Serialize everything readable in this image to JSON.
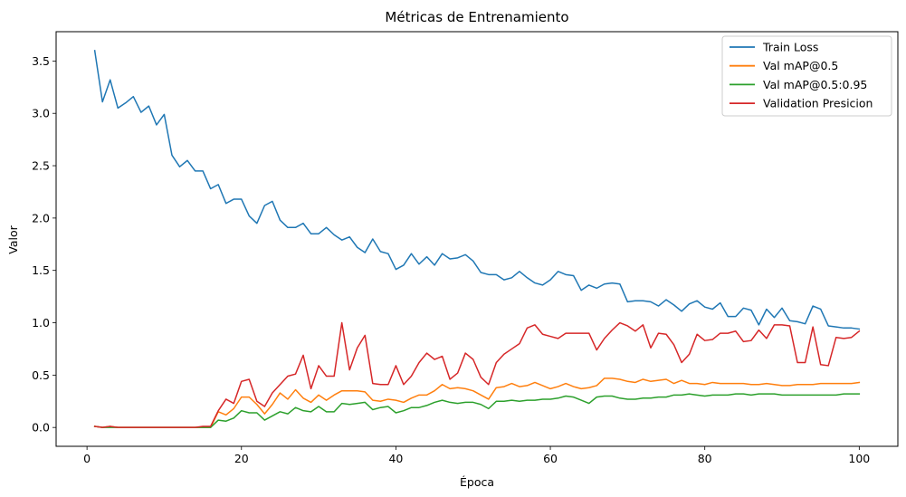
{
  "chart_data": {
    "type": "line",
    "title": "Métricas de Entrenamiento",
    "xlabel": "Época",
    "ylabel": "Valor",
    "xlim": [
      -4,
      105
    ],
    "ylim": [
      -0.18,
      3.78
    ],
    "xticks": [
      0,
      20,
      40,
      60,
      80,
      100
    ],
    "xtick_labels": [
      "0",
      "20",
      "40",
      "60",
      "80",
      "100"
    ],
    "yticks": [
      0.0,
      0.5,
      1.0,
      1.5,
      2.0,
      2.5,
      3.0,
      3.5
    ],
    "ytick_labels": [
      "0.0",
      "0.5",
      "1.0",
      "1.5",
      "2.0",
      "2.5",
      "3.0",
      "3.5"
    ],
    "grid": false,
    "legend_position": "top-right",
    "x": [
      1,
      2,
      3,
      4,
      5,
      6,
      7,
      8,
      9,
      10,
      11,
      12,
      13,
      14,
      15,
      16,
      17,
      18,
      19,
      20,
      21,
      22,
      23,
      24,
      25,
      26,
      27,
      28,
      29,
      30,
      31,
      32,
      33,
      34,
      35,
      36,
      37,
      38,
      39,
      40,
      41,
      42,
      43,
      44,
      45,
      46,
      47,
      48,
      49,
      50,
      51,
      52,
      53,
      54,
      55,
      56,
      57,
      58,
      59,
      60,
      61,
      62,
      63,
      64,
      65,
      66,
      67,
      68,
      69,
      70,
      71,
      72,
      73,
      74,
      75,
      76,
      77,
      78,
      79,
      80,
      81,
      82,
      83,
      84,
      85,
      86,
      87,
      88,
      89,
      90,
      91,
      92,
      93,
      94,
      95,
      96,
      97,
      98,
      99,
      100
    ],
    "series": [
      {
        "name": "Train Loss",
        "color": "#1f77b4",
        "values": [
          3.6,
          3.11,
          3.32,
          3.05,
          3.1,
          3.16,
          3.01,
          3.07,
          2.89,
          2.99,
          2.6,
          2.49,
          2.55,
          2.45,
          2.45,
          2.28,
          2.32,
          2.14,
          2.18,
          2.18,
          2.02,
          1.95,
          2.12,
          2.16,
          1.98,
          1.91,
          1.91,
          1.95,
          1.85,
          1.85,
          1.91,
          1.84,
          1.79,
          1.82,
          1.72,
          1.67,
          1.8,
          1.68,
          1.66,
          1.51,
          1.55,
          1.66,
          1.56,
          1.63,
          1.55,
          1.66,
          1.61,
          1.62,
          1.65,
          1.59,
          1.48,
          1.46,
          1.46,
          1.41,
          1.43,
          1.49,
          1.43,
          1.38,
          1.36,
          1.41,
          1.49,
          1.46,
          1.45,
          1.31,
          1.36,
          1.33,
          1.37,
          1.38,
          1.37,
          1.2,
          1.21,
          1.21,
          1.2,
          1.16,
          1.22,
          1.17,
          1.11,
          1.18,
          1.21,
          1.15,
          1.13,
          1.19,
          1.06,
          1.06,
          1.14,
          1.12,
          0.98,
          1.13,
          1.05,
          1.14,
          1.02,
          1.01,
          0.99,
          1.16,
          1.13,
          0.97,
          0.96,
          0.95,
          0.95,
          0.94
        ]
      },
      {
        "name": "Val mAP@0.5",
        "color": "#ff7f0e",
        "values": [
          0.01,
          0.0,
          0.01,
          0.0,
          0.0,
          0.0,
          0.0,
          0.0,
          0.0,
          0.0,
          0.0,
          0.0,
          0.0,
          0.0,
          0.0,
          0.0,
          0.15,
          0.12,
          0.18,
          0.29,
          0.29,
          0.22,
          0.13,
          0.22,
          0.33,
          0.27,
          0.36,
          0.28,
          0.24,
          0.31,
          0.26,
          0.31,
          0.35,
          0.35,
          0.35,
          0.34,
          0.26,
          0.25,
          0.27,
          0.26,
          0.24,
          0.28,
          0.31,
          0.31,
          0.35,
          0.41,
          0.37,
          0.38,
          0.37,
          0.35,
          0.31,
          0.27,
          0.38,
          0.39,
          0.42,
          0.39,
          0.4,
          0.43,
          0.4,
          0.37,
          0.39,
          0.42,
          0.39,
          0.37,
          0.38,
          0.4,
          0.47,
          0.47,
          0.46,
          0.44,
          0.43,
          0.46,
          0.44,
          0.45,
          0.46,
          0.42,
          0.45,
          0.42,
          0.42,
          0.41,
          0.43,
          0.42,
          0.42,
          0.42,
          0.42,
          0.41,
          0.41,
          0.42,
          0.41,
          0.4,
          0.4,
          0.41,
          0.41,
          0.41,
          0.42,
          0.42,
          0.42,
          0.42,
          0.42,
          0.43
        ]
      },
      {
        "name": "Val mAP@0.5:0.95",
        "color": "#2ca02c",
        "values": [
          0.01,
          0.0,
          0.0,
          0.0,
          0.0,
          0.0,
          0.0,
          0.0,
          0.0,
          0.0,
          0.0,
          0.0,
          0.0,
          0.0,
          0.0,
          0.0,
          0.07,
          0.06,
          0.09,
          0.16,
          0.14,
          0.14,
          0.07,
          0.11,
          0.15,
          0.13,
          0.19,
          0.16,
          0.15,
          0.2,
          0.15,
          0.15,
          0.23,
          0.22,
          0.23,
          0.24,
          0.17,
          0.19,
          0.2,
          0.14,
          0.16,
          0.19,
          0.19,
          0.21,
          0.24,
          0.26,
          0.24,
          0.23,
          0.24,
          0.24,
          0.22,
          0.18,
          0.25,
          0.25,
          0.26,
          0.25,
          0.26,
          0.26,
          0.27,
          0.27,
          0.28,
          0.3,
          0.29,
          0.26,
          0.23,
          0.29,
          0.3,
          0.3,
          0.28,
          0.27,
          0.27,
          0.28,
          0.28,
          0.29,
          0.29,
          0.31,
          0.31,
          0.32,
          0.31,
          0.3,
          0.31,
          0.31,
          0.31,
          0.32,
          0.32,
          0.31,
          0.32,
          0.32,
          0.32,
          0.31,
          0.31,
          0.31,
          0.31,
          0.31,
          0.31,
          0.31,
          0.31,
          0.32,
          0.32,
          0.32
        ]
      },
      {
        "name": "Validation Presicion",
        "color": "#d62728",
        "values": [
          0.01,
          0.0,
          0.01,
          0.0,
          0.0,
          0.0,
          0.0,
          0.0,
          0.0,
          0.0,
          0.0,
          0.0,
          0.0,
          0.0,
          0.01,
          0.01,
          0.16,
          0.27,
          0.23,
          0.44,
          0.46,
          0.25,
          0.2,
          0.33,
          0.41,
          0.49,
          0.51,
          0.69,
          0.37,
          0.59,
          0.49,
          0.49,
          1.0,
          0.55,
          0.76,
          0.88,
          0.42,
          0.41,
          0.41,
          0.59,
          0.41,
          0.49,
          0.62,
          0.71,
          0.65,
          0.68,
          0.46,
          0.52,
          0.71,
          0.65,
          0.48,
          0.41,
          0.62,
          0.7,
          0.75,
          0.8,
          0.95,
          0.98,
          0.89,
          0.87,
          0.85,
          0.9,
          0.9,
          0.9,
          0.9,
          0.74,
          0.85,
          0.93,
          1.0,
          0.97,
          0.92,
          0.98,
          0.76,
          0.9,
          0.89,
          0.79,
          0.62,
          0.7,
          0.89,
          0.83,
          0.84,
          0.9,
          0.9,
          0.92,
          0.82,
          0.83,
          0.93,
          0.85,
          0.98,
          0.98,
          0.97,
          0.62,
          0.62,
          0.96,
          0.6,
          0.59,
          0.86,
          0.85,
          0.86,
          0.92
        ]
      }
    ]
  }
}
